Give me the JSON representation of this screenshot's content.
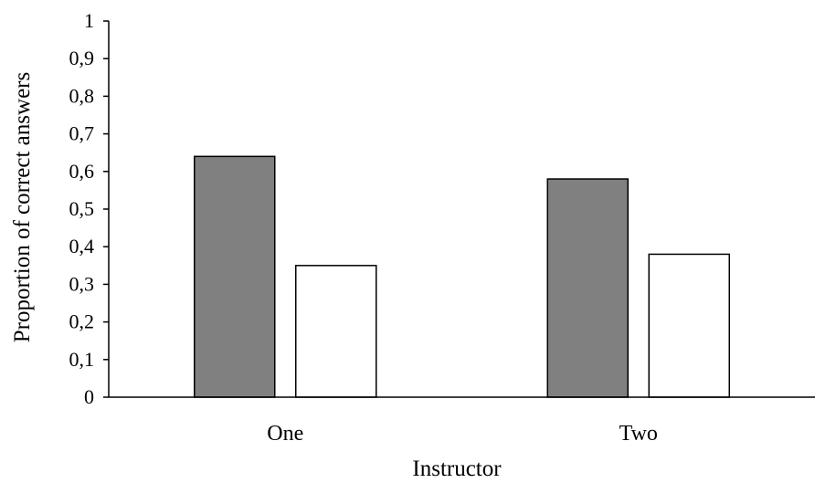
{
  "chart_data": {
    "type": "bar",
    "title": "",
    "xlabel": "Instructor",
    "ylabel": "Proportion of correct answers",
    "categories": [
      "One",
      "Two"
    ],
    "series": [
      {
        "values": [
          0.64,
          0.58
        ],
        "color": "#808080"
      },
      {
        "values": [
          0.35,
          0.38
        ],
        "color": "#ffffff"
      }
    ],
    "ylim": [
      0,
      1
    ],
    "yticks": [
      "0",
      "0,1",
      "0,2",
      "0,3",
      "0,4",
      "0,5",
      "0,6",
      "0,7",
      "0,8",
      "0,9",
      "1"
    ],
    "grid": false,
    "legend": "none"
  }
}
